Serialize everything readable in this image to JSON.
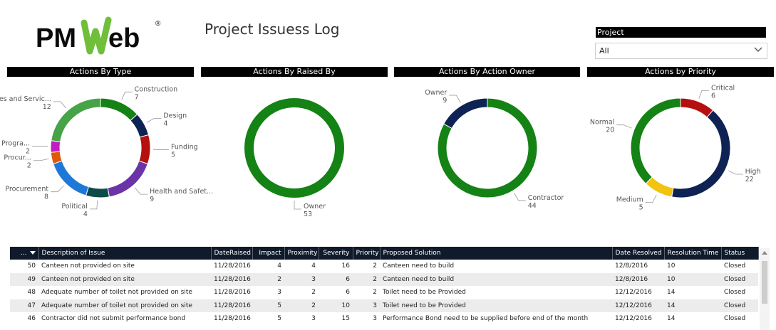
{
  "app": {
    "logo_text": "PMWeb",
    "logo_registered": "®",
    "title": "Project Issuess Log"
  },
  "slicer": {
    "label": "Project",
    "value": "All",
    "icon": "chevron-down-icon"
  },
  "colors": {
    "green_dark": "#148214",
    "green_light": "#47a347",
    "navy": "#0e2354",
    "red": "#b50f0f",
    "purple": "#6a34a8",
    "teal": "#0d4a4a",
    "blue": "#1e78d8",
    "orange": "#e0580c",
    "magenta": "#c21cc2",
    "yellow": "#f2c30f"
  },
  "chart_data": [
    {
      "type": "pie",
      "title": "Actions By Type",
      "slices": [
        {
          "label": "Construction",
          "value": 7,
          "color": "#148214"
        },
        {
          "label": "Design",
          "value": 4,
          "color": "#0e2354"
        },
        {
          "label": "Funding",
          "value": 5,
          "color": "#b50f0f"
        },
        {
          "label": "Health and Safet...",
          "value": 9,
          "color": "#6a34a8"
        },
        {
          "label": "Political",
          "value": 4,
          "color": "#0d4a4a"
        },
        {
          "label": "Procurement",
          "value": 8,
          "color": "#1e78d8"
        },
        {
          "label": "Procur...",
          "value": 2,
          "color": "#e0580c"
        },
        {
          "label": "Progra...",
          "value": 2,
          "color": "#c21cc2"
        },
        {
          "label": "Utilities and Servic...",
          "value": 12,
          "color": "#47a347"
        }
      ]
    },
    {
      "type": "pie",
      "title": "Actions By Raised By",
      "slices": [
        {
          "label": "Owner",
          "value": 53,
          "color": "#148214"
        }
      ]
    },
    {
      "type": "pie",
      "title": "Actions By Action Owner",
      "slices": [
        {
          "label": "Contractor",
          "value": 44,
          "color": "#148214"
        },
        {
          "label": "Owner",
          "value": 9,
          "color": "#0e2354"
        }
      ]
    },
    {
      "type": "pie",
      "title": "Actions by Priority",
      "slices": [
        {
          "label": "Critical",
          "value": 6,
          "color": "#b50f0f"
        },
        {
          "label": "High",
          "value": 22,
          "color": "#0e2354"
        },
        {
          "label": "Medium",
          "value": 5,
          "color": "#f2c30f"
        },
        {
          "label": "Normal",
          "value": 20,
          "color": "#148214"
        }
      ]
    }
  ],
  "table": {
    "columns": [
      "...",
      "Description of Issue",
      "DateRaised",
      "Impact",
      "Proximity",
      "Severity",
      "Priority",
      "Proposed Solution",
      "Date Resolved",
      "Resolution Time",
      "Status"
    ],
    "rows": [
      [
        "50",
        "Canteen not provided on site",
        "11/28/2016",
        "4",
        "4",
        "16",
        "2",
        "Canteen need to build",
        "12/8/2016",
        "10",
        "Closed"
      ],
      [
        "49",
        "Canteen not provided on site",
        "11/28/2016",
        "2",
        "3",
        "6",
        "2",
        "Canteen need to build",
        "12/8/2016",
        "10",
        "Closed"
      ],
      [
        "48",
        "Adequate number of toilet not provided on site",
        "11/28/2016",
        "3",
        "2",
        "6",
        "2",
        "Toilet need to be Provided",
        "12/12/2016",
        "14",
        "Closed"
      ],
      [
        "47",
        "Adequate number of toilet not provided on site",
        "11/28/2016",
        "5",
        "2",
        "10",
        "3",
        "Toilet need to be Provided",
        "12/12/2016",
        "14",
        "Closed"
      ],
      [
        "46",
        "Contractor did not submit performance bond",
        "11/28/2016",
        "5",
        "3",
        "15",
        "3",
        "Performance Bond need to be supplied before end of the month",
        "12/12/2016",
        "14",
        "Closed"
      ]
    ]
  }
}
